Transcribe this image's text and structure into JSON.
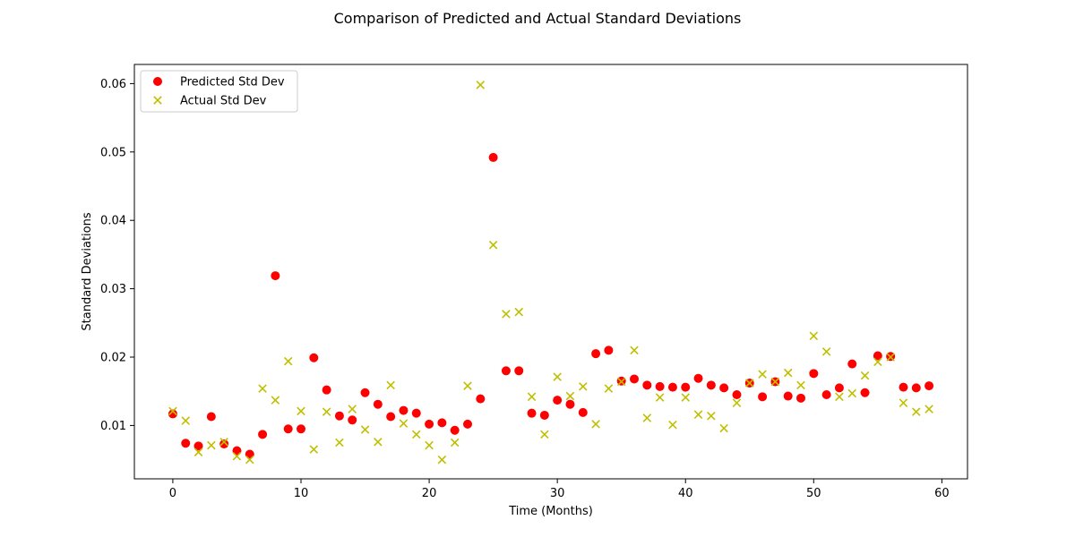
{
  "chart_data": {
    "type": "scatter",
    "title": "Comparison of Predicted and Actual Standard Deviations",
    "xlabel": "Time (Months)",
    "ylabel": "Standard Deviations",
    "xlim": [
      -3,
      62
    ],
    "ylim": [
      0.0022,
      0.0628
    ],
    "xticks": [
      0,
      10,
      20,
      30,
      40,
      50,
      60
    ],
    "yticks": [
      0.01,
      0.02,
      0.03,
      0.04,
      0.05,
      0.06
    ],
    "xtick_labels": [
      "0",
      "10",
      "20",
      "30",
      "40",
      "50",
      "60"
    ],
    "ytick_labels": [
      "0.01",
      "0.02",
      "0.03",
      "0.04",
      "0.05",
      "0.06"
    ],
    "legend_position": "top-left",
    "grid": false,
    "series": [
      {
        "name": "Predicted Std Dev",
        "marker": "circle",
        "color": "#ff0000",
        "x": [
          0,
          1,
          2,
          3,
          4,
          5,
          6,
          7,
          8,
          9,
          10,
          11,
          12,
          13,
          14,
          15,
          16,
          17,
          18,
          19,
          20,
          21,
          22,
          23,
          24,
          25,
          26,
          27,
          28,
          29,
          30,
          31,
          32,
          33,
          34,
          35,
          36,
          37,
          38,
          39,
          40,
          41,
          42,
          43,
          44,
          45,
          46,
          47,
          48,
          49,
          50,
          51,
          52,
          53,
          54,
          55,
          56,
          57,
          58,
          59
        ],
        "values": [
          0.0117,
          0.0074,
          0.007,
          0.0113,
          0.0073,
          0.0063,
          0.0058,
          0.0087,
          0.0319,
          0.0095,
          0.0095,
          0.0199,
          0.0152,
          0.0114,
          0.0108,
          0.0148,
          0.0131,
          0.0113,
          0.0122,
          0.0118,
          0.0102,
          0.0104,
          0.0093,
          0.0102,
          0.0139,
          0.0492,
          0.018,
          0.018,
          0.0118,
          0.0115,
          0.0137,
          0.0131,
          0.0119,
          0.0205,
          0.021,
          0.0165,
          0.0168,
          0.0159,
          0.0157,
          0.0156,
          0.0156,
          0.0169,
          0.0159,
          0.0155,
          0.0145,
          0.0162,
          0.0142,
          0.0164,
          0.0143,
          0.014,
          0.0176,
          0.0145,
          0.0155,
          0.019,
          0.0148,
          0.0202,
          0.0201,
          0.0156,
          0.0155,
          0.0158
        ]
      },
      {
        "name": "Actual Std Dev",
        "marker": "x",
        "color": "#bfbf00",
        "x": [
          0,
          1,
          2,
          3,
          4,
          5,
          6,
          7,
          8,
          9,
          10,
          11,
          12,
          13,
          14,
          15,
          16,
          17,
          18,
          19,
          20,
          21,
          22,
          23,
          24,
          25,
          26,
          27,
          28,
          29,
          30,
          31,
          32,
          33,
          34,
          35,
          36,
          37,
          38,
          39,
          40,
          41,
          42,
          43,
          44,
          45,
          46,
          47,
          48,
          49,
          50,
          51,
          52,
          53,
          54,
          55,
          56,
          57,
          58,
          59
        ],
        "values": [
          0.0121,
          0.0107,
          0.0061,
          0.0071,
          0.0076,
          0.0055,
          0.005,
          0.0154,
          0.0137,
          0.0194,
          0.0121,
          0.0065,
          0.012,
          0.0075,
          0.0124,
          0.0094,
          0.0076,
          0.0159,
          0.0103,
          0.0087,
          0.0071,
          0.005,
          0.0075,
          0.0158,
          0.0598,
          0.0364,
          0.0263,
          0.0266,
          0.0142,
          0.0087,
          0.0171,
          0.0143,
          0.0157,
          0.0102,
          0.0154,
          0.0164,
          0.021,
          0.0111,
          0.0141,
          0.0101,
          0.0141,
          0.0116,
          0.0114,
          0.0096,
          0.0133,
          0.0162,
          0.0175,
          0.0164,
          0.0177,
          0.0159,
          0.0231,
          0.0208,
          0.0142,
          0.0147,
          0.0173,
          0.0193,
          0.02,
          0.0133,
          0.012,
          0.0124
        ]
      }
    ]
  }
}
